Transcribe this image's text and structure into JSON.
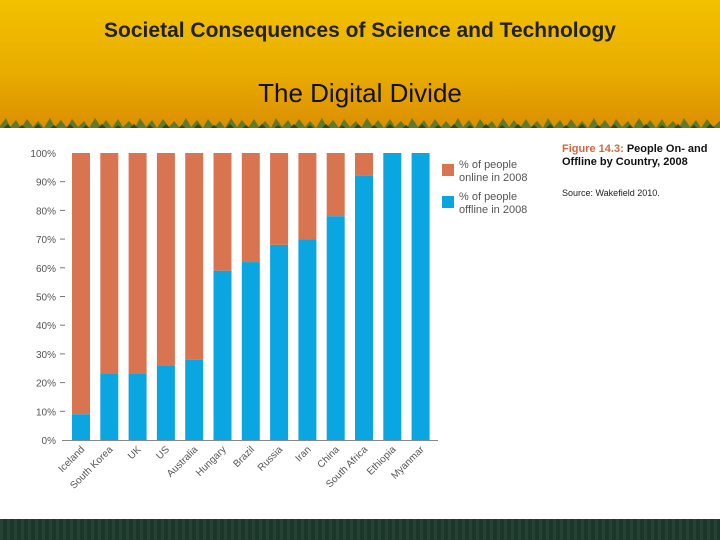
{
  "slide": {
    "title": "Societal Consequences of Science and Technology",
    "subtitle": "The Digital Divide"
  },
  "caption": {
    "figure": "Figure 14.3:",
    "text": "People On- and Offline by Country, 2008",
    "source": "Source: Wakefield 2010."
  },
  "colors": {
    "online": "#d97450",
    "offline": "#0aa6e2",
    "header": "#eab000",
    "footer": "#1d3a2c"
  },
  "chart_data": {
    "type": "bar",
    "stacked": true,
    "title": "",
    "xlabel": "",
    "ylabel": "",
    "ylim": [
      0,
      100
    ],
    "yticks": [
      "0%",
      "10%",
      "20%",
      "30%",
      "40%",
      "50%",
      "60%",
      "70%",
      "80%",
      "90%",
      "100%"
    ],
    "categories": [
      "Iceland",
      "South Korea",
      "UK",
      "US",
      "Australia",
      "Hungary",
      "Brazil",
      "Russia",
      "Iran",
      "China",
      "South Africa",
      "Ethiopia",
      "Myanmar"
    ],
    "series": [
      {
        "name": "% of people offline in 2008",
        "values": [
          9,
          23,
          23,
          26,
          28,
          59,
          62,
          68,
          70,
          78,
          92,
          100,
          100
        ]
      },
      {
        "name": "% of people online in 2008",
        "values": [
          91,
          77,
          77,
          74,
          72,
          41,
          38,
          32,
          30,
          22,
          8,
          0,
          0
        ]
      }
    ],
    "legend": "top-right"
  }
}
